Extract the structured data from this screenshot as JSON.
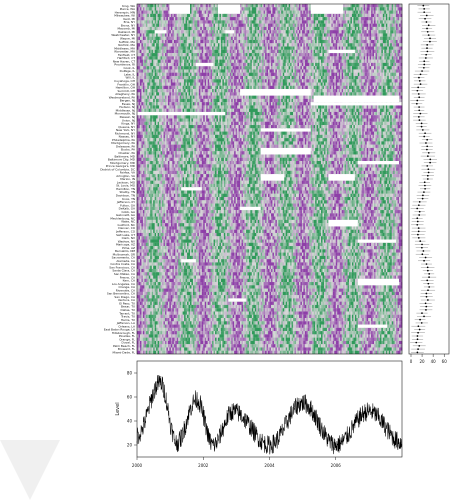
{
  "chart_data": [
    {
      "type": "heatmap",
      "title": "",
      "row_labels": [
        "King, WA",
        "Pierce, WA",
        "Hennepin, MN",
        "Milwaukee, WI",
        "Kent, MI",
        "Erie, NY",
        "Bronx, NY",
        "Macomb, MI",
        "Oakland, MI",
        "Westchester, NY",
        "Wayne, MI",
        "Suffolk, MA",
        "Norfolk, MA",
        "Middlesex, MA",
        "Worcester, MA",
        "Fairfield, CT",
        "Hartford, CT",
        "New Haven, CT",
        "Providence, RI",
        "Cook, IL",
        "DuPage, IL",
        "Lake, IL",
        "Will, IL",
        "Cuyahoga, OH",
        "Franklin, OH",
        "Hamilton, OH",
        "Summit, OH",
        "Allegheny, PA",
        "Westmoreland, PA",
        "Bergen, NJ",
        "Essex, NJ",
        "Hudson, NJ",
        "Middlesex, NJ",
        "Monmouth, NJ",
        "Passaic, NJ",
        "Union, NJ",
        "Kings, NY",
        "Queens, NY",
        "New York, NY",
        "Richmond, NY",
        "Nassau, NY",
        "Philadelphia, PA",
        "Montgomery, PA",
        "Delaware, PA",
        "Bucks, PA",
        "Chester, PA",
        "Baltimore, MD",
        "Baltimore City, MD",
        "Montgomery, MD",
        "Prince George's, MD",
        "District of Columbia, DC",
        "Fairfax, VA",
        "Arlington, VA",
        "Marion, IN",
        "Jackson, MO",
        "St. Louis, MO",
        "Hamilton, TN",
        "Shelby, TN",
        "Davidson, TN",
        "Knox, TN",
        "Jefferson, KY",
        "Fulton, GA",
        "DeKalb, GA",
        "Cobb, GA",
        "Gwinnett, GA",
        "Mecklenburg, NC",
        "Wake, NC",
        "Guilford, NC",
        "Denver, CO",
        "Jefferson, CO",
        "Salt Lake, UT",
        "Clark, NV",
        "Washoe, NV",
        "Maricopa, AZ",
        "Pima, AZ",
        "Bernalillo, NM",
        "Multnomah, OR",
        "Sacramento, CA",
        "Alameda, CA",
        "Contra Costa, CA",
        "San Francisco, CA",
        "Santa Clara, CA",
        "San Mateo, CA",
        "Fresno, CA",
        "Kern, CA",
        "Los Angeles, CA",
        "Orange, CA",
        "Riverside, CA",
        "San Bernardino, CA",
        "San Diego, CA",
        "Ventura, CA",
        "El Paso, TX",
        "Bexar, TX",
        "Dallas, TX",
        "Tarrant, TX",
        "Travis, TX",
        "Harris, TX",
        "Jefferson, LA",
        "Orleans, LA",
        "East Baton Rouge, LA",
        "Hillsborough, FL",
        "Pinellas, FL",
        "Orange, FL",
        "Duval, FL",
        "Palm Beach, FL",
        "Broward, FL",
        "Miami-Dade, FL"
      ],
      "x_range_years": [
        2000,
        2008
      ],
      "color_low": "#8e3fa8",
      "color_mid": "#d9d9d9",
      "color_high": "#2f9a5a",
      "missing_color": "#ffffff",
      "grid": false
    },
    {
      "type": "scatter",
      "title": "",
      "xlabel": "",
      "ylabel": "",
      "x_ticks": [
        "0",
        "20",
        "40",
        "60"
      ],
      "xlim": [
        0,
        65
      ],
      "point_estimates_desc_note": "one point with horizontal interval per row, same row order as heatmap"
    },
    {
      "type": "line",
      "title": "",
      "xlabel": "",
      "ylabel": "Level",
      "x_ticks": [
        "2000",
        "2002",
        "2004",
        "2006"
      ],
      "y_ticks": [
        "20",
        "40",
        "60",
        "80"
      ],
      "xlim": [
        2000,
        2008
      ],
      "ylim": [
        10,
        90
      ],
      "series": [
        {
          "values_desc": "daily series, seasonal cycle peaking mid-year",
          "seasonal_peaks": [
            {
              "x": 2000.7,
              "y": 72
            },
            {
              "x": 2001.8,
              "y": 58
            },
            {
              "x": 2002.9,
              "y": 48
            },
            {
              "x": 2005.0,
              "y": 55
            },
            {
              "x": 2007.0,
              "y": 48
            }
          ],
          "seasonal_troughs": [
            {
              "x": 2000.0,
              "y": 28
            },
            {
              "x": 2001.2,
              "y": 22
            },
            {
              "x": 2002.3,
              "y": 20
            },
            {
              "x": 2004.0,
              "y": 20
            },
            {
              "x": 2006.0,
              "y": 20
            },
            {
              "x": 2008.0,
              "y": 22
            }
          ]
        }
      ]
    }
  ]
}
